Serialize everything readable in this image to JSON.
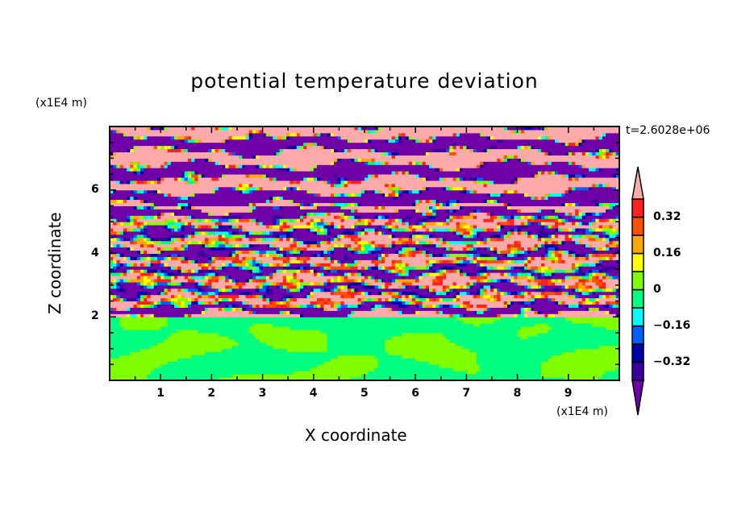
{
  "chart_data": {
    "type": "heatmap",
    "title": "potential temperature deviation",
    "xlabel": "X coordinate",
    "ylabel": "Z coordinate",
    "x_unit": "(x1E4 m)",
    "y_unit": "(x1E4 m)",
    "annotation": "t=2.6028e+06",
    "xlim": [
      0,
      10
    ],
    "ylim": [
      0,
      8
    ],
    "x_ticks": [
      1,
      2,
      3,
      4,
      5,
      6,
      7,
      8,
      9
    ],
    "y_ticks": [
      2,
      4,
      6
    ],
    "boundary_layer_top": 2.0,
    "levels": [
      -0.4,
      -0.32,
      -0.24,
      -0.16,
      -0.08,
      0,
      0.08,
      0.16,
      0.24,
      0.32,
      0.4
    ],
    "colors": [
      "#3a00a0",
      "#0000a8",
      "#0060ff",
      "#00ffff",
      "#00ff80",
      "#80ff00",
      "#ffff00",
      "#ffa800",
      "#ff5000",
      "#ff2020"
    ],
    "under_color": "#7000a8",
    "over_color": "#ffaaaa",
    "colorbar_labels": [
      {
        "value": 0.32,
        "label": "0.32"
      },
      {
        "value": 0.16,
        "label": "0.16"
      },
      {
        "value": 0,
        "label": "0"
      },
      {
        "value": -0.16,
        "label": "−0.16"
      },
      {
        "value": -0.32,
        "label": "−0.32"
      }
    ]
  }
}
